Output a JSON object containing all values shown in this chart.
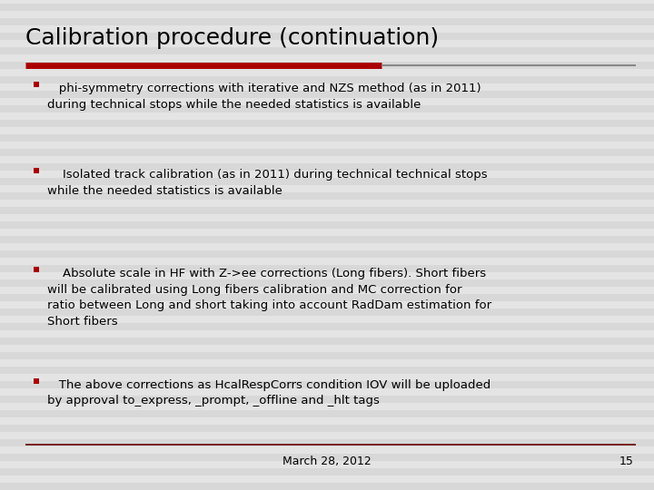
{
  "title": "Calibration procedure (continuation)",
  "background_color": "#e0e0e0",
  "stripe_color1": "#d8d8d8",
  "stripe_color2": "#e4e4e4",
  "title_color": "#000000",
  "title_fontsize": 18,
  "bullet_color": "#aa0000",
  "text_color": "#000000",
  "text_fontsize": 9.5,
  "footer_date": "March 28, 2012",
  "footer_page": "15",
  "footer_fontsize": 9,
  "header_line_color1": "#aa0000",
  "header_line_color2": "#888888",
  "footer_line_color": "#660000",
  "bullet_marker_size": 5,
  "bullets": [
    "   phi-symmetry corrections with iterative and NZS method (as in 2011)\nduring technical stops while the needed statistics is available",
    "    Isolated track calibration (as in 2011) during technical technical stops\nwhile the needed statistics is available",
    "    Absolute scale in HF with Z->ee corrections (Long fibers). Short fibers\nwill be calibrated using Long fibers calibration and MC correction for\nratio between Long and short taking into account RadDam estimation for\nShort fibers",
    "   The above corrections as HcalRespCorrs condition IOV will be uploaded\nby approval to_express, _prompt, _offline and _hlt tags"
  ]
}
